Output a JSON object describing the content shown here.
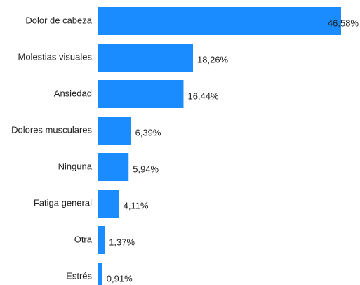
{
  "chart_data": {
    "type": "hbar",
    "categories": [
      "Dolor de cabeza",
      "Molestias visuales",
      "Ansiedad",
      "Dolores musculares",
      "Ninguna",
      "Fatiga general",
      "Otra",
      "Estrés"
    ],
    "values": [
      46.58,
      18.26,
      16.44,
      6.39,
      5.94,
      4.11,
      1.37,
      0.91
    ],
    "value_labels": [
      "46,58%",
      "18,26%",
      "16,44%",
      "6,39%",
      "5,94%",
      "4,11%",
      "1,37%",
      "0,91%"
    ],
    "color": "#1a8cff"
  }
}
